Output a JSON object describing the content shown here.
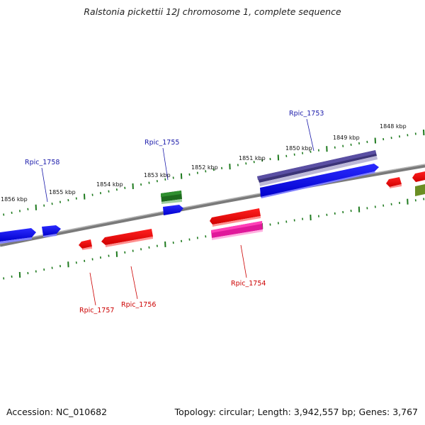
{
  "title": "Ralstonia pickettii 12J chromosome 1, complete sequence",
  "accession": "Accession: NC_010682",
  "topology": "Topology: circular; Length: 3,942,557 bp; Genes: 3,767",
  "scale_labels": [
    "1848 kbp",
    "1849 kbp",
    "1850 kbp",
    "1851 kbp",
    "1852 kbp",
    "1853 kbp",
    "1854 kbp",
    "1855 kbp",
    "1856 kbp"
  ],
  "gene_labels": [
    {
      "text": "Rpic_1753",
      "strand": "forward"
    },
    {
      "text": "Rpic_1755",
      "strand": "forward"
    },
    {
      "text": "Rpic_1758",
      "strand": "forward"
    },
    {
      "text": "Rpic_1754",
      "strand": "reverse"
    },
    {
      "text": "Rpic_1756",
      "strand": "reverse"
    },
    {
      "text": "Rpic_1757",
      "strand": "reverse"
    }
  ],
  "colors": {
    "forward_label": "#1a1aaa",
    "reverse_label": "#cc0000",
    "tick": "#1e7a1e",
    "backbone": "#7a7a7a"
  }
}
